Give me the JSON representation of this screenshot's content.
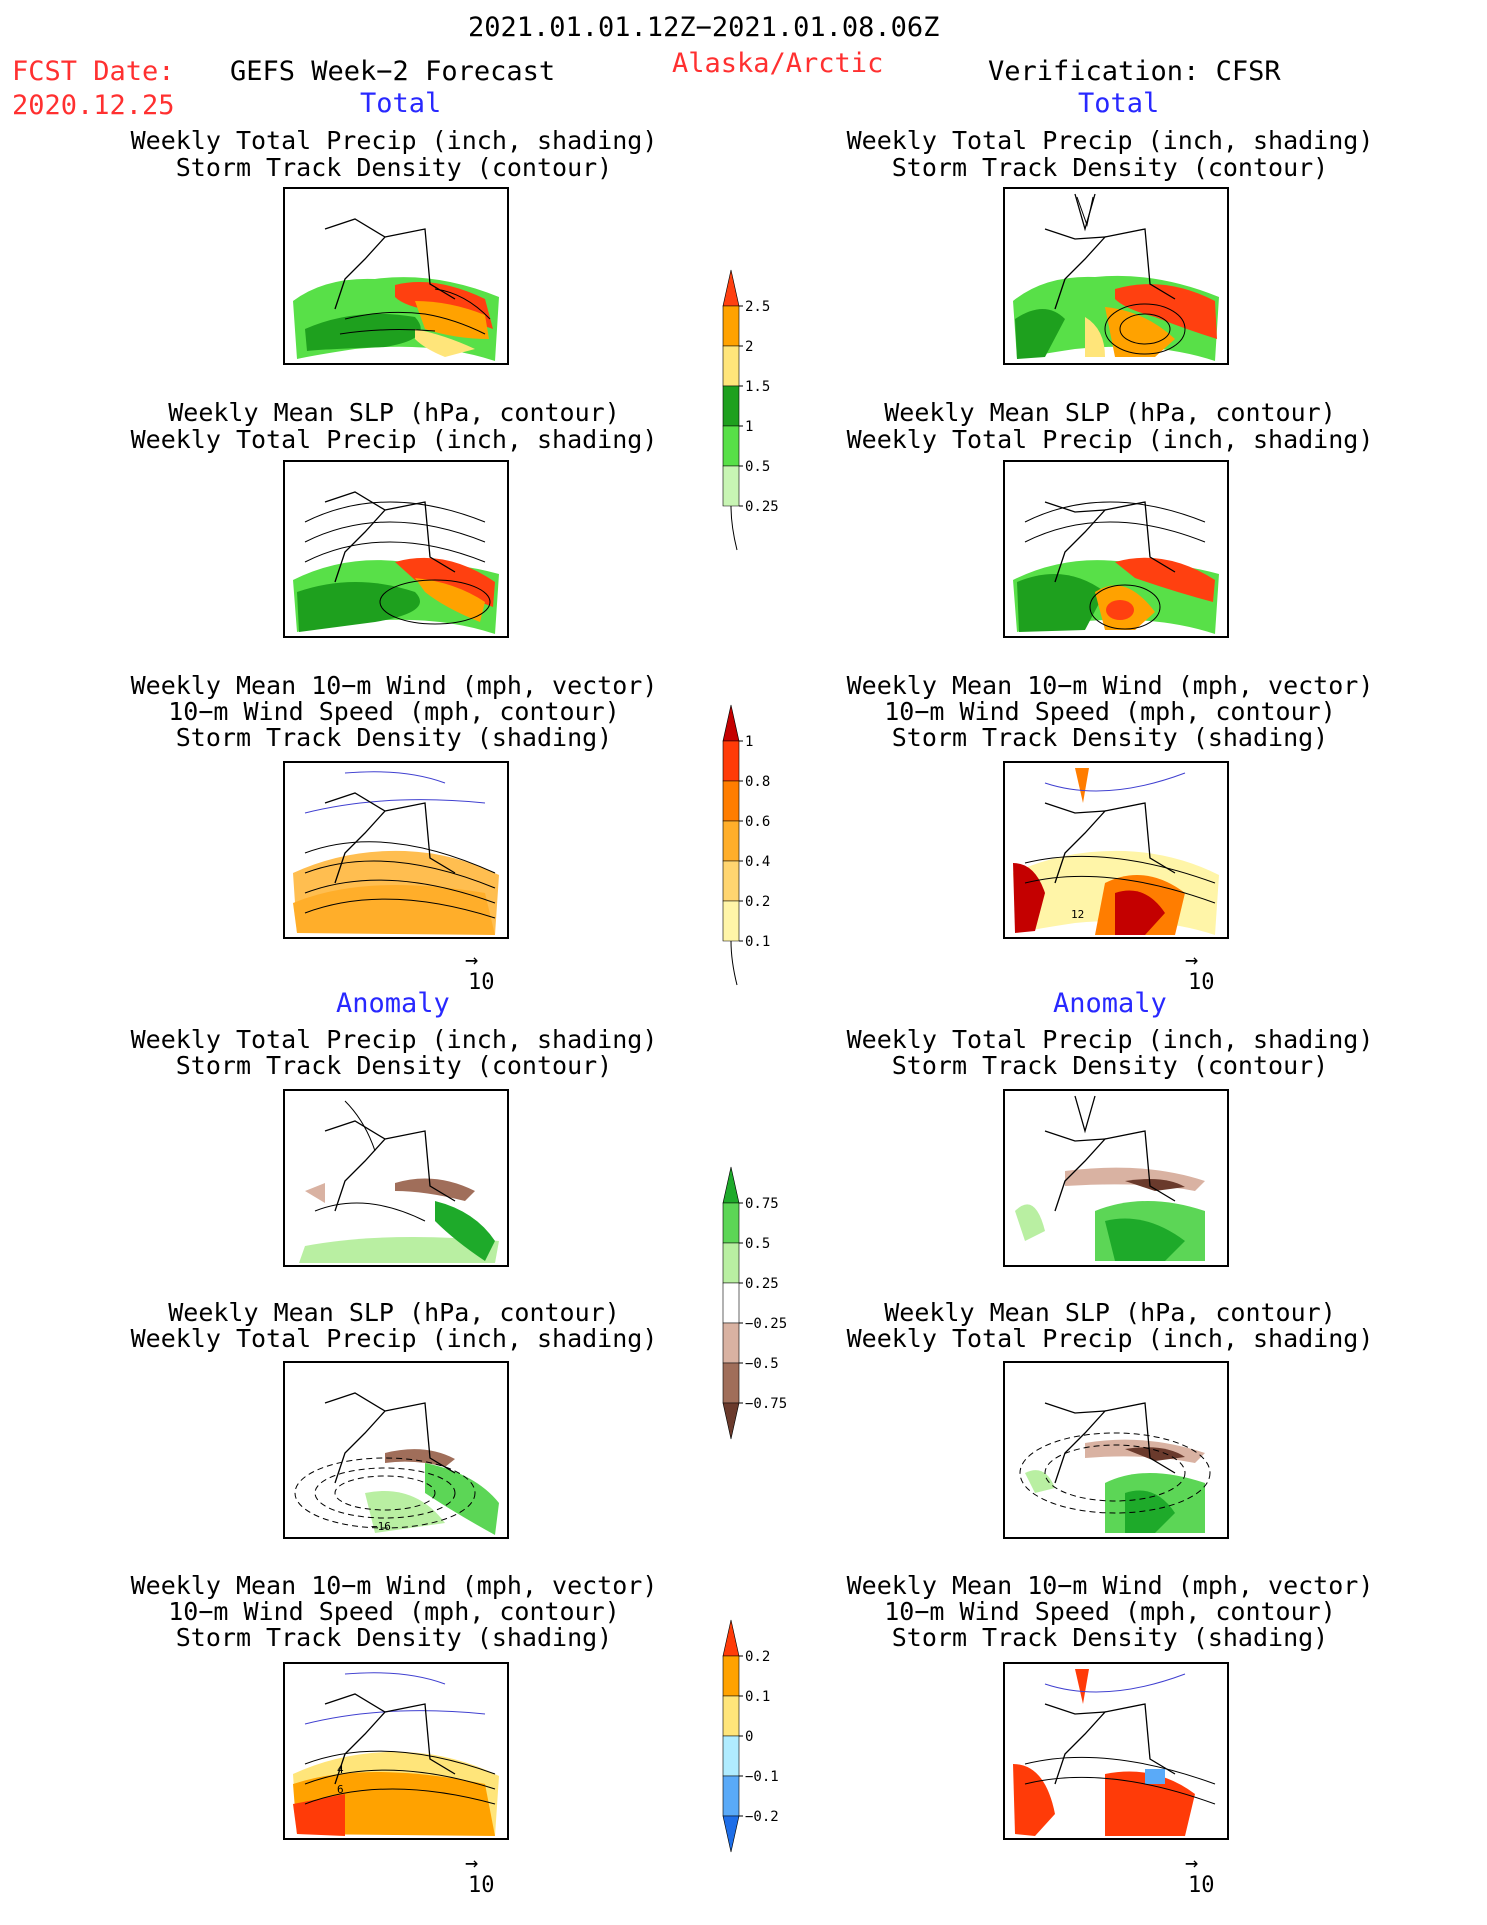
{
  "header": {
    "period": "2021.01.01.12Z−2021.01.08.06Z",
    "fcst_label": "FCST Date:",
    "fcst_date": "2020.12.25",
    "forecast_title": "GEFS Week−2 Forecast",
    "region": "Alaska/Arctic",
    "verification": "Verification: CFSR"
  },
  "sections": {
    "total": "Total",
    "anomaly": "Anomaly"
  },
  "titles": {
    "precip_storm": [
      "Weekly Total Precip (inch, shading)",
      "Storm Track Density (contour)"
    ],
    "slp_precip": [
      "Weekly Mean SLP (hPa, contour)",
      "Weekly Total Precip (inch, shading)"
    ],
    "wind_storm": [
      "Weekly Mean 10−m Wind (mph, vector)",
      "10−m Wind Speed (mph, contour)",
      "Storm Track Density (shading)"
    ]
  },
  "vector_reference": "10",
  "contour_labels": {
    "wind_total_cfsr": "12",
    "slp_anom_gefs": "−16",
    "wind_anom_gefs_a": "4",
    "wind_anom_gefs_b": "6"
  },
  "colorbars": {
    "precip_total": {
      "ticks": [
        "0.25",
        "0.5",
        "1",
        "1.5",
        "2",
        "2.5"
      ],
      "colors": [
        "#c8f5b4",
        "#58e048",
        "#1ea01e",
        "#ffe57a",
        "#ffa200",
        "#ff4010"
      ]
    },
    "storm_total": {
      "ticks": [
        "0.1",
        "0.2",
        "0.4",
        "0.6",
        "0.8",
        "1"
      ],
      "colors": [
        "#fff5a8",
        "#ffd570",
        "#ffae2a",
        "#ff7d00",
        "#ff3b08",
        "#c40000"
      ]
    },
    "precip_anom": {
      "ticks": [
        "−0.75",
        "−0.5",
        "−0.25",
        "0.25",
        "0.5",
        "0.75"
      ],
      "colors": [
        "#6a3a2c",
        "#a06e5a",
        "#d9b2a2",
        "#ffffff",
        "#b9efa2",
        "#5cd656",
        "#1eaa2a"
      ]
    },
    "storm_anom": {
      "ticks": [
        "−0.2",
        "−0.1",
        "0",
        "0.1",
        "0.2"
      ],
      "colors": [
        "#1e6ee8",
        "#5aaaf8",
        "#b0ecff",
        "#ffe57a",
        "#ffa200",
        "#ff3b08"
      ]
    }
  }
}
